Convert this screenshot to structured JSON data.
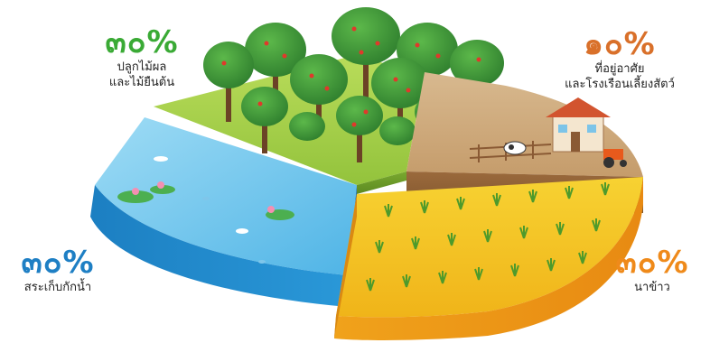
{
  "colors": {
    "orchard": "#3aaa35",
    "housing": "#d9702a",
    "pond": "#1e7fc4",
    "rice": "#ef8a1a"
  },
  "chart_data": {
    "type": "pie",
    "categories": [
      "ปลูกไม้ผล และไม้ยืนต้น",
      "ที่อยู่อาศัย และโรงเรือนเลี้ยงสัตว์",
      "สระเก็บกักน้ำ",
      "นาข้าว"
    ],
    "values": [
      30,
      10,
      30,
      30
    ],
    "labels": {
      "orchard": {
        "pct": "๓๐%",
        "line1": "ปลูกไม้ผล",
        "line2": "และไม้ยืนต้น"
      },
      "housing": {
        "pct": "๑๐%",
        "line1": "ที่อยู่อาศัย",
        "line2": "และโรงเรือนเลี้ยงสัตว์"
      },
      "pond": {
        "pct": "๓๐%",
        "line1": "สระเก็บกักน้ำ"
      },
      "rice": {
        "pct": "๓๐%",
        "line1": "นาข้าว"
      }
    }
  }
}
